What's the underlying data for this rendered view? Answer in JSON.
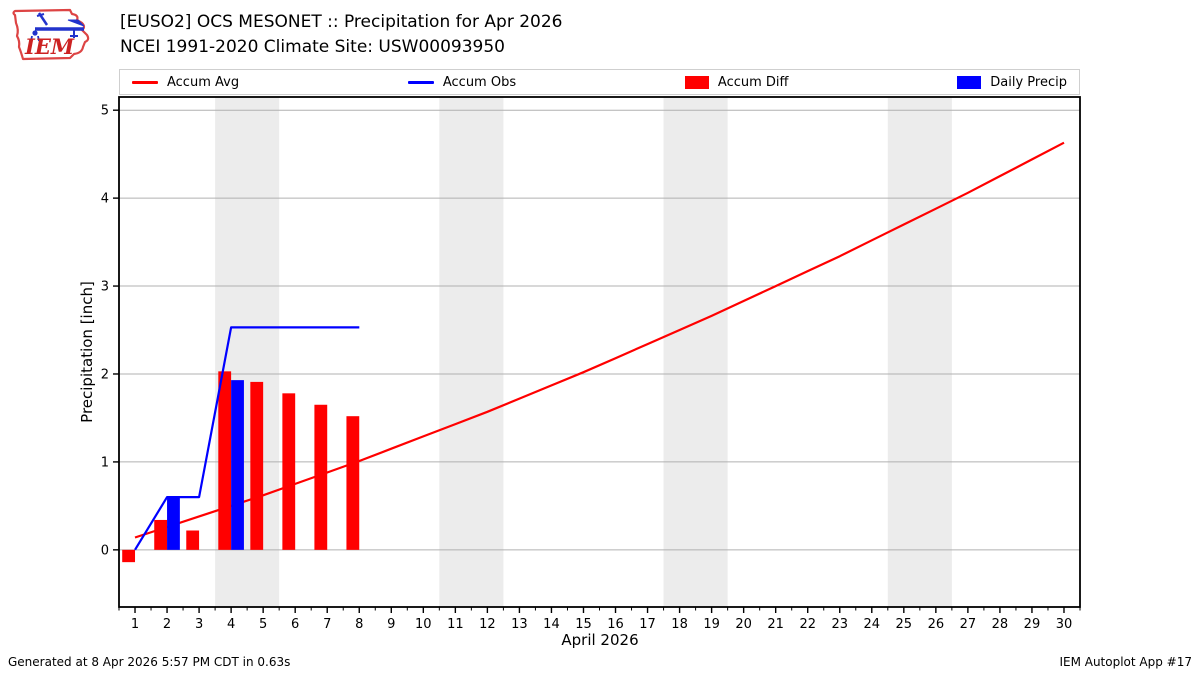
{
  "header": {
    "title_line1": "[EUSO2] OCS MESONET :: Precipitation for Apr 2026",
    "title_line2": "NCEI 1991-2020 Climate Site: USW00093950",
    "logo_text": "IEM"
  },
  "legend": {
    "items": [
      {
        "label": "Accum Avg",
        "swatch": "line",
        "color": "#ff0000"
      },
      {
        "label": "Accum Obs",
        "swatch": "line",
        "color": "#0000ff"
      },
      {
        "label": "Accum Diff",
        "swatch": "rect",
        "color": "#ff0000"
      },
      {
        "label": "Daily Precip",
        "swatch": "rect",
        "color": "#0000ff"
      }
    ]
  },
  "chart_data": {
    "type": "line+bar",
    "title": "",
    "xlabel": "April 2026",
    "ylabel": "Precipitation [inch]",
    "xlim": [
      0.5,
      30.5
    ],
    "ylim": [
      -0.65,
      5.15
    ],
    "x_ticks": [
      1,
      2,
      3,
      4,
      5,
      6,
      7,
      8,
      9,
      10,
      11,
      12,
      13,
      14,
      15,
      16,
      17,
      18,
      19,
      20,
      21,
      22,
      23,
      24,
      25,
      26,
      27,
      28,
      29,
      30
    ],
    "y_ticks": [
      0,
      1,
      2,
      3,
      4,
      5
    ],
    "grid": true,
    "legend_position": "top",
    "weekend_bands": [
      [
        3.5,
        5.5
      ],
      [
        10.5,
        12.5
      ],
      [
        17.5,
        19.5
      ],
      [
        24.5,
        26.5
      ]
    ],
    "bar_width_days": 0.4,
    "series": [
      {
        "name": "Accum Avg",
        "type": "line",
        "color": "#ff0000",
        "x": [
          1,
          2,
          3,
          4,
          5,
          6,
          7,
          8,
          9,
          10,
          11,
          12,
          13,
          14,
          15,
          16,
          17,
          18,
          19,
          20,
          21,
          22,
          23,
          24,
          25,
          26,
          27,
          28,
          29,
          30
        ],
        "y": [
          0.14,
          0.26,
          0.38,
          0.5,
          0.62,
          0.75,
          0.88,
          1.01,
          1.15,
          1.29,
          1.43,
          1.57,
          1.72,
          1.87,
          2.02,
          2.18,
          2.34,
          2.5,
          2.66,
          2.83,
          3.0,
          3.17,
          3.34,
          3.52,
          3.7,
          3.88,
          4.06,
          4.25,
          4.44,
          4.63
        ]
      },
      {
        "name": "Accum Diff",
        "type": "bar",
        "align": "left",
        "color": "#ff0000",
        "x": [
          1,
          2,
          3,
          4,
          5,
          6,
          7,
          8
        ],
        "y": [
          -0.14,
          0.34,
          0.22,
          2.03,
          1.91,
          1.78,
          1.65,
          1.52
        ]
      },
      {
        "name": "Daily Precip",
        "type": "bar",
        "align": "right",
        "color": "#0000ff",
        "x": [
          2,
          4
        ],
        "y": [
          0.6,
          1.93
        ]
      },
      {
        "name": "Accum Obs",
        "type": "line",
        "color": "#0000ff",
        "x": [
          1,
          2,
          3,
          4,
          5,
          6,
          7,
          8
        ],
        "y": [
          0.0,
          0.6,
          0.6,
          2.53,
          2.53,
          2.53,
          2.53,
          2.53
        ]
      }
    ],
    "colors": {
      "grid": "#b0b0b0",
      "weekend_band": "#ececec",
      "spine": "#000000",
      "legend_border": "#cfcfcf",
      "accent_red": "#ff0000",
      "accent_blue": "#0000ff"
    }
  },
  "footer": {
    "left": "Generated at 8 Apr 2026 5:57 PM CDT in 0.63s",
    "right": "IEM Autoplot App #17"
  }
}
